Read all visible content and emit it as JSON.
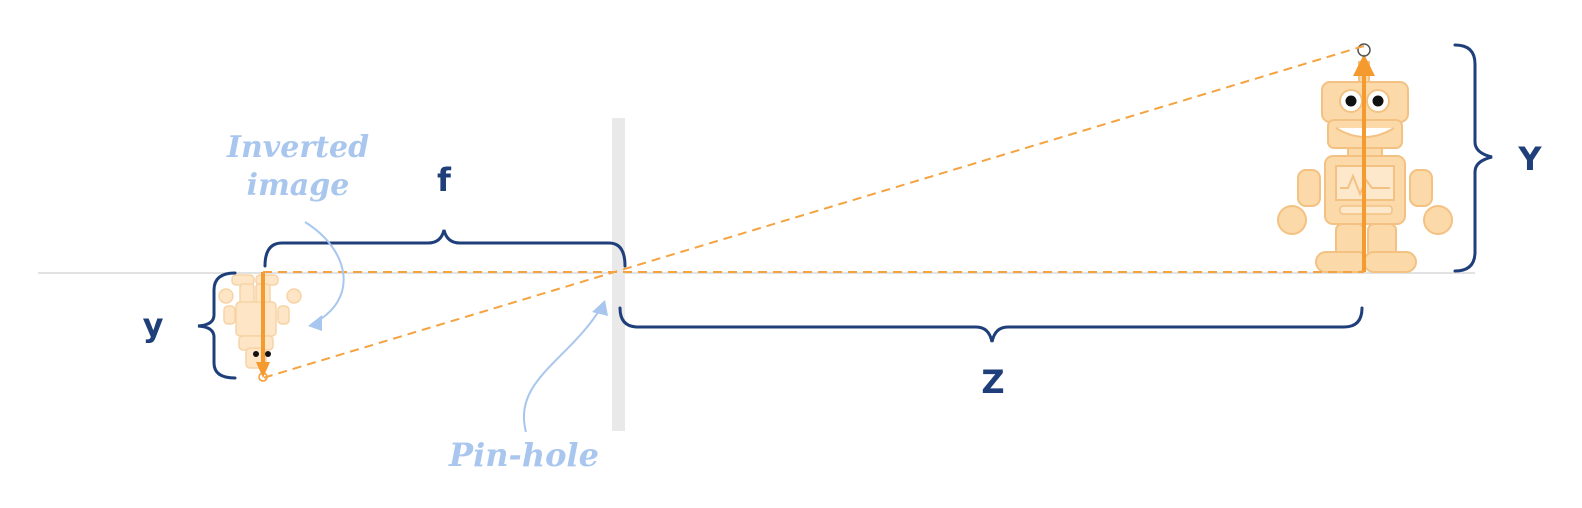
{
  "labels": {
    "inverted_image": [
      "Inverted",
      "image"
    ],
    "pin_hole": "Pin-hole",
    "f": "f",
    "y": "y",
    "z": "Z",
    "Y": "Y"
  },
  "colors": {
    "navy": "#1f3f7a",
    "orange": "#f59a2e",
    "orange_dash": "#f5a340",
    "robot_fill": "#fcd9a8",
    "robot_stroke": "#f3c283",
    "annotation_blue": "#a9c6ee",
    "barrier": "#e8e8e8",
    "axis": "#d9d9d9"
  }
}
